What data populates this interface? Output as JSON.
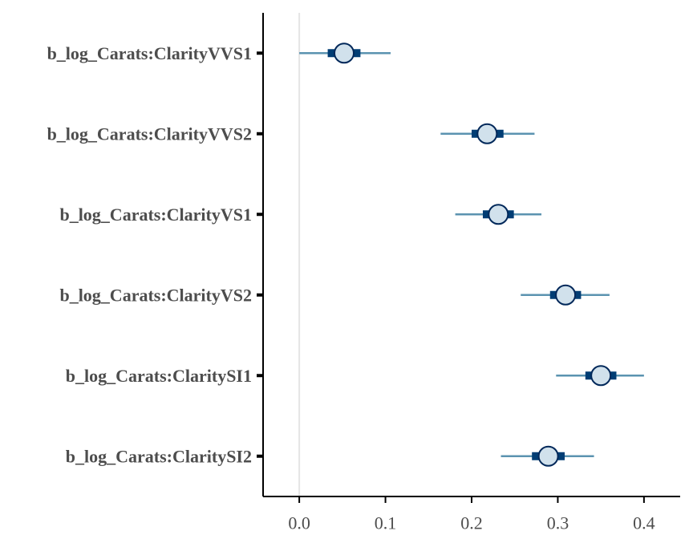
{
  "chart_data": {
    "type": "interval",
    "categories": [
      "b_log_Carats:ClarityVVS1",
      "b_log_Carats:ClarityVVS2",
      "b_log_Carats:ClarityVS1",
      "b_log_Carats:ClarityVS2",
      "b_log_Carats:ClaritySI1",
      "b_log_Carats:ClaritySI2"
    ],
    "estimates": [
      0.052,
      0.218,
      0.231,
      0.309,
      0.35,
      0.289
    ],
    "inner_intervals": [
      [
        0.033,
        0.071
      ],
      [
        0.2,
        0.237
      ],
      [
        0.213,
        0.249
      ],
      [
        0.291,
        0.327
      ],
      [
        0.332,
        0.368
      ],
      [
        0.27,
        0.308
      ]
    ],
    "outer_intervals": [
      [
        0.0,
        0.106
      ],
      [
        0.164,
        0.273
      ],
      [
        0.181,
        0.281
      ],
      [
        0.257,
        0.36
      ],
      [
        0.298,
        0.4
      ],
      [
        0.234,
        0.342
      ]
    ],
    "x_ticks": [
      "0.0",
      "0.1",
      "0.2",
      "0.3",
      "0.4"
    ],
    "xlim": [
      -0.042,
      0.442
    ],
    "reference_line": 0.0,
    "colors": {
      "outer_interval": "#5b93b0",
      "inner_interval": "#013d74",
      "point_fill": "#d1e1ec",
      "point_stroke": "#01285a",
      "reference_line": "#e5e5e5",
      "axis": "#000000",
      "text": "#4d4d4d"
    }
  }
}
